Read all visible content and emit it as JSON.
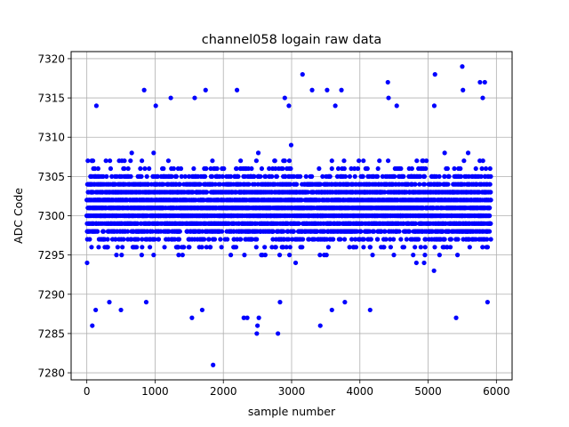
{
  "chart_data": {
    "type": "scatter",
    "title": "channel058 logain raw data",
    "xlabel": "sample number",
    "ylabel": "ADC Code",
    "xlim": [
      -230,
      6230
    ],
    "ylim": [
      7279.1,
      7320.9
    ],
    "xticks": [
      0,
      1000,
      2000,
      3000,
      4000,
      5000,
      6000
    ],
    "yticks": [
      7280,
      7285,
      7290,
      7295,
      7300,
      7305,
      7310,
      7315,
      7320
    ],
    "grid": true,
    "marker_color": "#0000ff",
    "n_samples": 5920,
    "value_range_dense": [
      7291,
      7309
    ],
    "outliers": [
      {
        "x": 840,
        "y": 7316
      },
      {
        "x": 1740,
        "y": 7316
      },
      {
        "x": 2200,
        "y": 7316
      },
      {
        "x": 3160,
        "y": 7318
      },
      {
        "x": 3300,
        "y": 7316
      },
      {
        "x": 3520,
        "y": 7316
      },
      {
        "x": 3730,
        "y": 7316
      },
      {
        "x": 4410,
        "y": 7317
      },
      {
        "x": 4420,
        "y": 7315
      },
      {
        "x": 5100,
        "y": 7318
      },
      {
        "x": 5500,
        "y": 7319
      },
      {
        "x": 5510,
        "y": 7316
      },
      {
        "x": 5760,
        "y": 7317
      },
      {
        "x": 5830,
        "y": 7317
      },
      {
        "x": 5800,
        "y": 7315
      },
      {
        "x": 1230,
        "y": 7315
      },
      {
        "x": 1580,
        "y": 7315
      },
      {
        "x": 2900,
        "y": 7315
      },
      {
        "x": 80,
        "y": 7286
      },
      {
        "x": 130,
        "y": 7288
      },
      {
        "x": 500,
        "y": 7288
      },
      {
        "x": 1540,
        "y": 7287
      },
      {
        "x": 1690,
        "y": 7288
      },
      {
        "x": 1850,
        "y": 7281
      },
      {
        "x": 2300,
        "y": 7287
      },
      {
        "x": 2350,
        "y": 7287
      },
      {
        "x": 2490,
        "y": 7285
      },
      {
        "x": 2500,
        "y": 7286
      },
      {
        "x": 2520,
        "y": 7287
      },
      {
        "x": 2800,
        "y": 7285
      },
      {
        "x": 2830,
        "y": 7289
      },
      {
        "x": 3420,
        "y": 7286
      },
      {
        "x": 3590,
        "y": 7288
      },
      {
        "x": 3780,
        "y": 7289
      },
      {
        "x": 4150,
        "y": 7288
      },
      {
        "x": 5410,
        "y": 7287
      },
      {
        "x": 5870,
        "y": 7289
      },
      {
        "x": 330,
        "y": 7289
      },
      {
        "x": 870,
        "y": 7289
      },
      {
        "x": 2960,
        "y": 7314
      },
      {
        "x": 3640,
        "y": 7314
      },
      {
        "x": 4540,
        "y": 7314
      },
      {
        "x": 5090,
        "y": 7314
      },
      {
        "x": 140,
        "y": 7314
      },
      {
        "x": 1010,
        "y": 7314
      }
    ]
  }
}
